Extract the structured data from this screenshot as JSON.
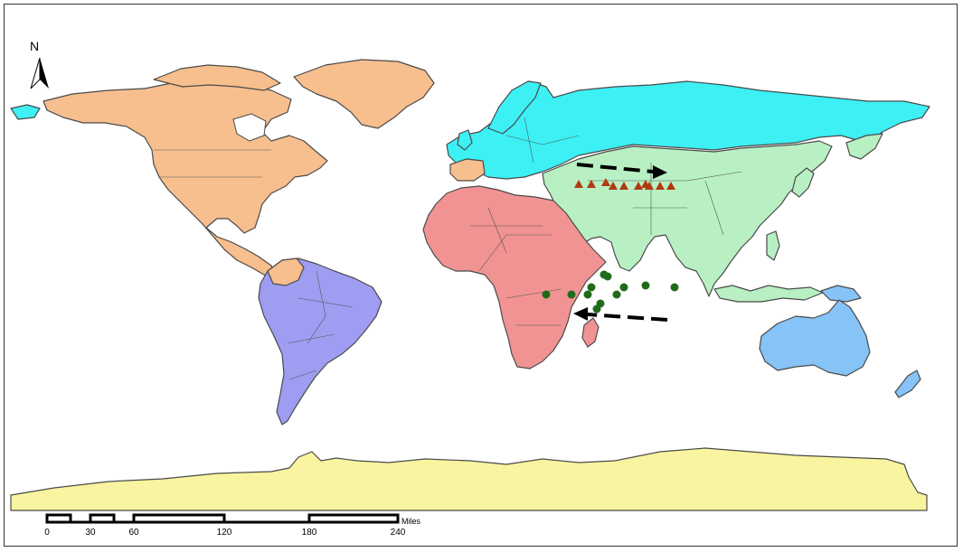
{
  "north_arrow": {
    "label": "N"
  },
  "scale_bar": {
    "ticks": [
      "0",
      "30",
      "60",
      "120",
      "180",
      "240"
    ],
    "unit": "Miles"
  },
  "regions": [
    {
      "id": "north-america",
      "color": "#F7BE8E"
    },
    {
      "id": "south-america",
      "color": "#9E9DF2"
    },
    {
      "id": "europe-russia",
      "color": "#3CF0F4"
    },
    {
      "id": "africa",
      "color": "#F29393"
    },
    {
      "id": "asia",
      "color": "#B8F0C4"
    },
    {
      "id": "oceania",
      "color": "#86C3F6"
    },
    {
      "id": "antarctica",
      "color": "#F8F49F"
    }
  ],
  "markers": {
    "triangles": {
      "color": "#B03A10",
      "count": 10
    },
    "circles": {
      "color": "#1F6B1A",
      "count": 12
    }
  },
  "arrows": [
    {
      "name": "eastward-arrow",
      "direction": "east"
    },
    {
      "name": "westward-arrow",
      "direction": "west"
    }
  ]
}
